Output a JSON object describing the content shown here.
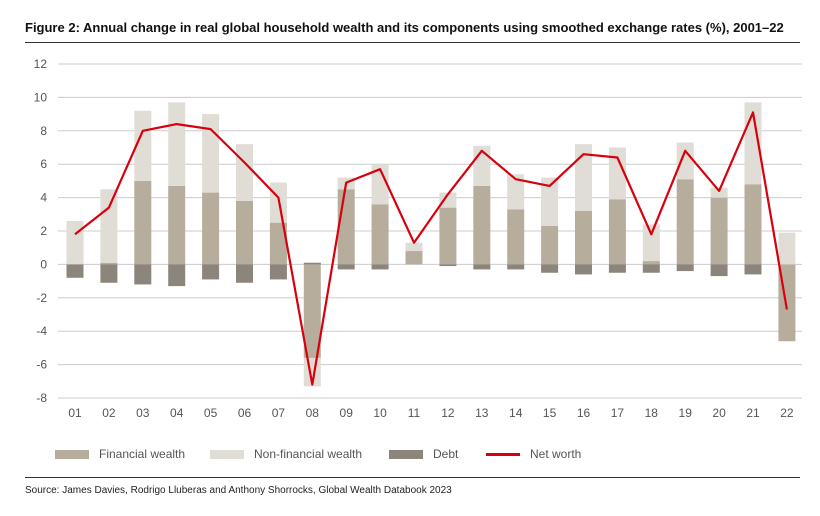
{
  "header": {
    "title": "Figure 2: Annual change in real global household wealth and its components using smoothed exchange rates (%), 2001–22"
  },
  "footer": {
    "source": "Source: James Davies, Rodrigo Lluberas and Anthony Shorrocks, Global Wealth Databook 2023"
  },
  "colors": {
    "financial": "#b7ad9c",
    "non_financial": "#e0ddd6",
    "debt": "#8b857c",
    "net_worth": "#d9000d",
    "grid": "#cccccc"
  },
  "chart_data": {
    "type": "bar",
    "stacked": true,
    "title": "Figure 2: Annual change in real global household wealth and its components using smoothed exchange rates (%), 2001–22",
    "categories": [
      "01",
      "02",
      "03",
      "04",
      "05",
      "06",
      "07",
      "08",
      "09",
      "10",
      "11",
      "12",
      "13",
      "14",
      "15",
      "16",
      "17",
      "18",
      "19",
      "20",
      "21",
      "22"
    ],
    "ylim": [
      -8,
      12
    ],
    "yticks": [
      -8,
      -6,
      -4,
      -2,
      0,
      2,
      4,
      6,
      8,
      10,
      12
    ],
    "grid": true,
    "legend_position": "bottom",
    "series": [
      {
        "name": "Financial wealth",
        "type": "bar",
        "values": [
          0.0,
          0.1,
          5.0,
          4.7,
          4.3,
          3.8,
          2.5,
          -5.6,
          4.5,
          3.6,
          0.8,
          3.4,
          4.7,
          3.3,
          2.3,
          3.2,
          3.9,
          0.2,
          5.1,
          4.0,
          4.8,
          -4.6
        ]
      },
      {
        "name": "Non-financial wealth",
        "type": "bar",
        "values": [
          2.6,
          4.4,
          4.2,
          5.0,
          4.7,
          3.4,
          2.4,
          -1.7,
          0.7,
          2.4,
          0.5,
          0.9,
          2.4,
          2.1,
          2.9,
          4.0,
          3.1,
          2.2,
          2.2,
          0.6,
          4.9,
          1.9
        ]
      },
      {
        "name": "Debt",
        "type": "bar",
        "values": [
          -0.8,
          -1.1,
          -1.2,
          -1.3,
          -0.9,
          -1.1,
          -0.9,
          0.1,
          -0.3,
          -0.3,
          0.0,
          -0.1,
          -0.3,
          -0.3,
          -0.5,
          -0.6,
          -0.5,
          -0.5,
          -0.4,
          -0.7,
          -0.6,
          0.0
        ]
      },
      {
        "name": "Net worth",
        "type": "line",
        "values": [
          1.8,
          3.4,
          8.0,
          8.4,
          8.1,
          6.1,
          4.0,
          -7.2,
          4.9,
          5.7,
          1.3,
          4.2,
          6.8,
          5.1,
          4.7,
          6.6,
          6.4,
          1.8,
          6.8,
          4.4,
          9.1,
          -2.7
        ]
      }
    ]
  }
}
